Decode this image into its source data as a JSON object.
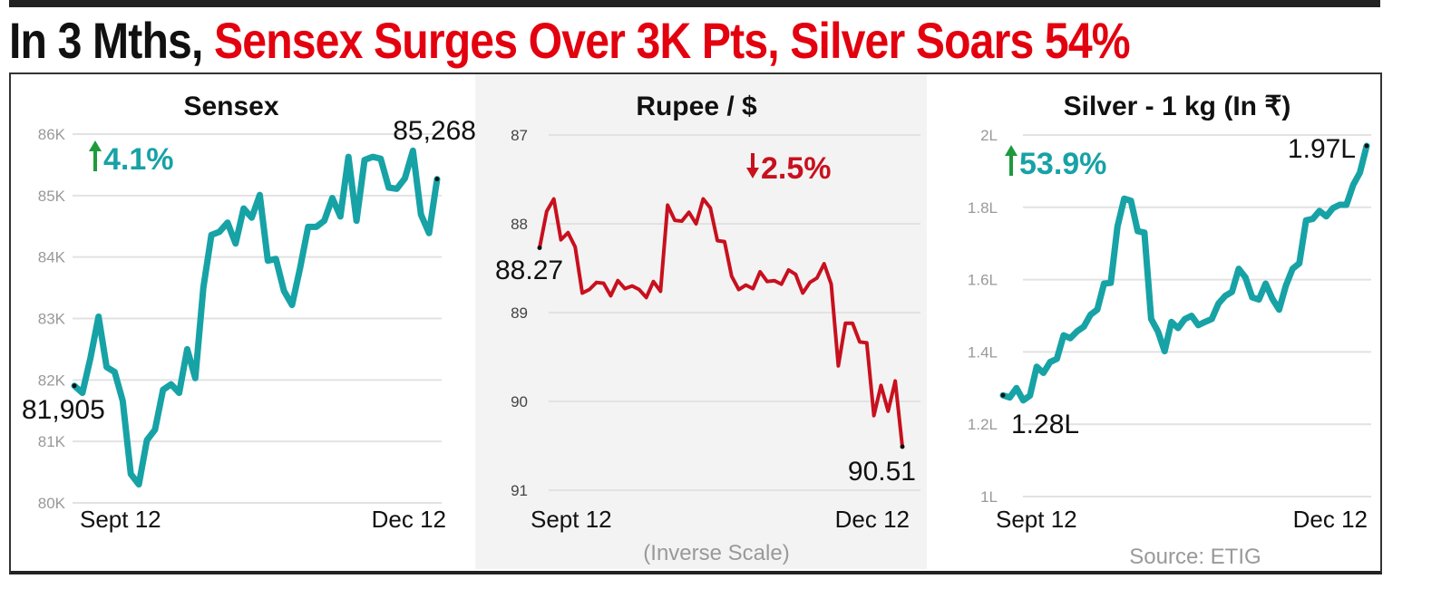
{
  "headline": {
    "part1": "In 3 Mths,",
    "part2": " Sensex Surges Over 3K Pts, Silver Soars 54%"
  },
  "colors": {
    "teal": "#17a2a6",
    "red": "#c8101e",
    "green_arrow": "#1e9a3c",
    "headline_red": "#e3000f"
  },
  "chart_data": [
    {
      "type": "line",
      "title": "Sensex",
      "change": {
        "direction": "up",
        "label": "4.1%"
      },
      "x_labels": [
        "Sept 12",
        "Dec 12"
      ],
      "y_ticks": [
        80000,
        81000,
        82000,
        83000,
        84000,
        85000,
        86000
      ],
      "y_tick_labels": [
        "80K",
        "81K",
        "82K",
        "83K",
        "84K",
        "85K",
        "86K"
      ],
      "ylim": [
        80000,
        86000
      ],
      "inverse": false,
      "start_label": "81,905",
      "end_label": "85,268",
      "color": "#17a2a6",
      "values": [
        81905,
        81790,
        82360,
        83030,
        82210,
        82130,
        81660,
        80470,
        80300,
        81020,
        81190,
        81840,
        81930,
        81790,
        82500,
        82030,
        83500,
        84360,
        84410,
        84560,
        84220,
        84790,
        84640,
        85010,
        83940,
        83970,
        83450,
        83220,
        83820,
        84490,
        84490,
        84590,
        84960,
        84660,
        85630,
        84590,
        85580,
        85630,
        85600,
        85130,
        85110,
        85280,
        85730,
        84690,
        84390,
        85268
      ]
    },
    {
      "type": "line",
      "title": "Rupee / $",
      "change": {
        "direction": "down",
        "label": "2.5%"
      },
      "x_labels": [
        "Sept 12",
        "Dec 12"
      ],
      "y_ticks": [
        87,
        88,
        89,
        90,
        91
      ],
      "y_tick_labels": [
        "87",
        "88",
        "89",
        "90",
        "91"
      ],
      "ylim": [
        87,
        91
      ],
      "inverse": true,
      "note": "(Inverse Scale)",
      "start_label": "88.27",
      "end_label": "90.51",
      "color": "#c8101e",
      "values": [
        88.27,
        87.86,
        87.72,
        88.18,
        88.1,
        88.26,
        88.78,
        88.74,
        88.66,
        88.67,
        88.81,
        88.64,
        88.73,
        88.7,
        88.74,
        88.83,
        88.65,
        88.76,
        87.79,
        87.96,
        87.97,
        87.87,
        88.0,
        87.72,
        87.82,
        88.19,
        88.2,
        88.59,
        88.74,
        88.69,
        88.73,
        88.54,
        88.65,
        88.64,
        88.68,
        88.52,
        88.57,
        88.78,
        88.66,
        88.61,
        88.45,
        88.68,
        89.6,
        89.12,
        89.12,
        89.33,
        89.34,
        90.16,
        89.82,
        90.11,
        89.77,
        90.51
      ]
    },
    {
      "type": "line",
      "title": "Silver - 1 kg (In ₹)",
      "change": {
        "direction": "up",
        "label": "53.9%"
      },
      "x_labels": [
        "Sept 12",
        "Dec 12"
      ],
      "y_ticks": [
        1.0,
        1.2,
        1.4,
        1.6,
        1.8,
        2.0
      ],
      "y_tick_labels": [
        "1L",
        "1.2L",
        "1.4L",
        "1.6L",
        "1.8L",
        "2L"
      ],
      "ylim": [
        1.0,
        2.0
      ],
      "inverse": false,
      "start_label": "1.28L",
      "end_label": "1.97L",
      "note": "Source: ETIG",
      "color": "#17a2a6",
      "values": [
        1.28,
        1.274,
        1.3,
        1.266,
        1.279,
        1.359,
        1.342,
        1.372,
        1.381,
        1.446,
        1.438,
        1.457,
        1.47,
        1.503,
        1.517,
        1.589,
        1.591,
        1.747,
        1.824,
        1.818,
        1.734,
        1.73,
        1.491,
        1.457,
        1.402,
        1.483,
        1.466,
        1.491,
        1.5,
        1.474,
        1.483,
        1.491,
        1.534,
        1.555,
        1.566,
        1.63,
        1.606,
        1.551,
        1.545,
        1.589,
        1.547,
        1.517,
        1.583,
        1.63,
        1.645,
        1.764,
        1.768,
        1.79,
        1.775,
        1.798,
        1.807,
        1.807,
        1.862,
        1.896,
        1.97
      ]
    }
  ]
}
